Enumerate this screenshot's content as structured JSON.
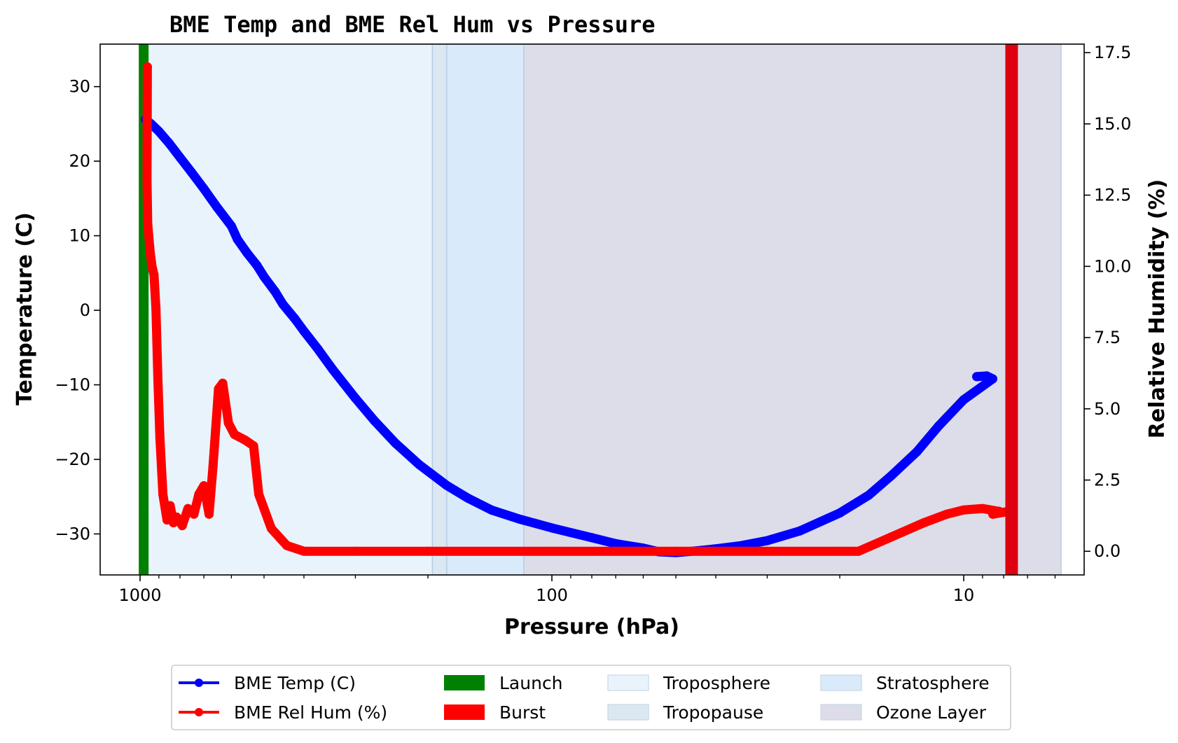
{
  "chart_data": {
    "type": "line",
    "title": "BME Temp and BME Rel Hum vs Pressure",
    "xlabel": "Pressure (hPa)",
    "ylabel_left": "Temperature (C)",
    "ylabel_right": "Relative Humidity (%)",
    "x_scale": "log",
    "x_inverted": true,
    "xlim": [
      1250,
      5.1
    ],
    "ylim_left": [
      -35.5,
      35.7
    ],
    "ylim_right": [
      -0.83,
      17.8
    ],
    "x_ticks": [
      {
        "value": 1000,
        "label": "1000"
      },
      {
        "value": 100,
        "label": "100"
      },
      {
        "value": 10,
        "label": "10"
      }
    ],
    "y_ticks_left": [
      {
        "value": 30,
        "label": "30"
      },
      {
        "value": 20,
        "label": "20"
      },
      {
        "value": 10,
        "label": "10"
      },
      {
        "value": 0,
        "label": "0"
      },
      {
        "value": -10,
        "label": "−10"
      },
      {
        "value": -20,
        "label": "−20"
      },
      {
        "value": -30,
        "label": "−30"
      }
    ],
    "y_ticks_right": [
      {
        "value": 17.5,
        "label": "17.5"
      },
      {
        "value": 15.0,
        "label": "15.0"
      },
      {
        "value": 12.5,
        "label": "12.5"
      },
      {
        "value": 10.0,
        "label": "10.0"
      },
      {
        "value": 7.5,
        "label": "7.5"
      },
      {
        "value": 5.0,
        "label": "5.0"
      },
      {
        "value": 2.5,
        "label": "2.5"
      },
      {
        "value": 0.0,
        "label": "0.0"
      }
    ],
    "grid": false,
    "legend_position": "bottom-center",
    "series": [
      {
        "name": "BME Temp (C)",
        "axis": "left",
        "color": "#0000ff",
        "points": [
          [
            970,
            25.6
          ],
          [
            940,
            25.0
          ],
          [
            900,
            24.0
          ],
          [
            850,
            22.4
          ],
          [
            800,
            20.5
          ],
          [
            750,
            18.5
          ],
          [
            700,
            16.3
          ],
          [
            650,
            13.8
          ],
          [
            600,
            11.3
          ],
          [
            580,
            9.5
          ],
          [
            550,
            7.7
          ],
          [
            520,
            6.0
          ],
          [
            500,
            4.5
          ],
          [
            470,
            2.5
          ],
          [
            450,
            0.8
          ],
          [
            420,
            -1.2
          ],
          [
            400,
            -2.8
          ],
          [
            370,
            -5.2
          ],
          [
            340,
            -8.0
          ],
          [
            300,
            -11.8
          ],
          [
            270,
            -14.8
          ],
          [
            240,
            -17.8
          ],
          [
            210,
            -20.7
          ],
          [
            180,
            -23.5
          ],
          [
            160,
            -25.2
          ],
          [
            140,
            -26.8
          ],
          [
            120,
            -28.0
          ],
          [
            100,
            -29.2
          ],
          [
            80,
            -30.5
          ],
          [
            70,
            -31.3
          ],
          [
            60,
            -31.9
          ],
          [
            55,
            -32.4
          ],
          [
            50,
            -32.5
          ],
          [
            45,
            -32.3
          ],
          [
            40,
            -32.0
          ],
          [
            35,
            -31.6
          ],
          [
            30,
            -30.9
          ],
          [
            25,
            -29.6
          ],
          [
            20,
            -27.2
          ],
          [
            17,
            -24.8
          ],
          [
            15,
            -22.2
          ],
          [
            13,
            -19.0
          ],
          [
            11.5,
            -15.5
          ],
          [
            10,
            -12.0
          ],
          [
            8.5,
            -9.2
          ],
          [
            8.8,
            -8.8
          ],
          [
            9.3,
            -8.9
          ]
        ]
      },
      {
        "name": "BME Rel Hum (%)",
        "axis": "right",
        "color": "#ff0000",
        "points": [
          [
            960,
            17.0
          ],
          [
            962,
            13.0
          ],
          [
            958,
            11.5
          ],
          [
            945,
            10.5
          ],
          [
            935,
            10.0
          ],
          [
            925,
            9.7
          ],
          [
            915,
            8.5
          ],
          [
            905,
            6.0
          ],
          [
            895,
            4.0
          ],
          [
            880,
            2.0
          ],
          [
            860,
            1.1
          ],
          [
            845,
            1.6
          ],
          [
            830,
            1.0
          ],
          [
            815,
            1.2
          ],
          [
            790,
            0.9
          ],
          [
            765,
            1.5
          ],
          [
            740,
            1.3
          ],
          [
            720,
            2.0
          ],
          [
            700,
            2.3
          ],
          [
            680,
            1.3
          ],
          [
            665,
            3.0
          ],
          [
            645,
            5.7
          ],
          [
            630,
            5.9
          ],
          [
            610,
            4.5
          ],
          [
            590,
            4.1
          ],
          [
            555,
            3.9
          ],
          [
            530,
            3.7
          ],
          [
            515,
            2.0
          ],
          [
            480,
            0.8
          ],
          [
            440,
            0.2
          ],
          [
            400,
            0.0
          ],
          [
            300,
            0.0
          ],
          [
            200,
            0.0
          ],
          [
            100,
            0.0
          ],
          [
            50,
            0.0
          ],
          [
            30,
            0.0
          ],
          [
            20,
            0.0
          ],
          [
            18,
            0.0
          ],
          [
            15,
            0.5
          ],
          [
            12.5,
            1.0
          ],
          [
            11,
            1.3
          ],
          [
            10,
            1.45
          ],
          [
            9.0,
            1.5
          ],
          [
            8.2,
            1.4
          ],
          [
            8.5,
            1.3
          ],
          [
            7.8,
            1.4
          ]
        ]
      }
    ],
    "vertical_markers": [
      {
        "name": "Launch",
        "x": 980,
        "color": "#008000"
      },
      {
        "name": "Burst",
        "x": 7.65,
        "color": "#dd0011"
      }
    ],
    "regions": [
      {
        "name": "Troposphere",
        "x_from": 1000,
        "x_to": 195,
        "color": "#e9f3fb"
      },
      {
        "name": "Tropopause",
        "x_from": 195,
        "x_to": 180,
        "color": "#dce8f1"
      },
      {
        "name": "Stratosphere",
        "x_from": 180,
        "x_to": 117,
        "color": "#d9ebfa"
      },
      {
        "name": "Ozone Layer",
        "x_from": 117,
        "x_to": 5.8,
        "color": "#dcdde9"
      }
    ],
    "legend": [
      {
        "label": "BME Temp (C)",
        "kind": "line",
        "color": "#0000ff"
      },
      {
        "label": "BME Rel Hum (%)",
        "kind": "line",
        "color": "#ff0000"
      },
      {
        "label": "Launch",
        "kind": "patch",
        "color": "#008000"
      },
      {
        "label": "Burst",
        "kind": "patch",
        "color": "#ff0000"
      },
      {
        "label": "Troposphere",
        "kind": "patch",
        "color": "#e9f3fb"
      },
      {
        "label": "Tropopause",
        "kind": "patch",
        "color": "#dce8f1"
      },
      {
        "label": "Stratosphere",
        "kind": "patch",
        "color": "#d9ebfa"
      },
      {
        "label": "Ozone Layer",
        "kind": "patch",
        "color": "#dcdde9"
      }
    ]
  }
}
